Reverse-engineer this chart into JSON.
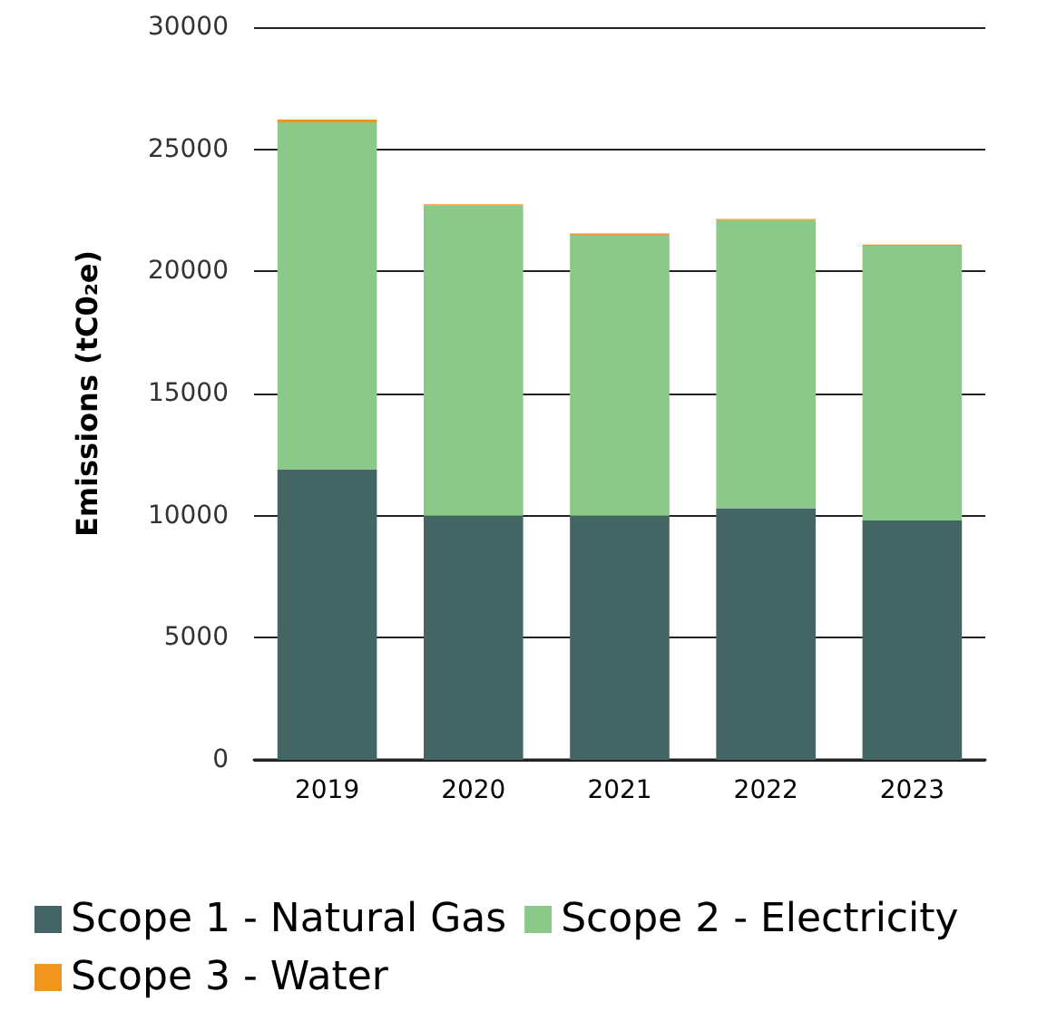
{
  "chart_data": {
    "type": "bar",
    "stacked": true,
    "ylabel": "Emissions (tC0₂e)",
    "categories": [
      "2019",
      "2020",
      "2021",
      "2022",
      "2023"
    ],
    "series": [
      {
        "name": "Scope 1 - Natural Gas",
        "color": "#436664",
        "values": [
          11900,
          10000,
          10000,
          10300,
          9800
        ]
      },
      {
        "name": "Scope 2 - Electricity",
        "color": "#8ac98a",
        "values": [
          14200,
          12700,
          11500,
          11800,
          11250
        ]
      },
      {
        "name": "Scope 3 - Water",
        "color": "#f0961e",
        "values": [
          120,
          50,
          50,
          50,
          50
        ]
      }
    ],
    "ylim": [
      0,
      30000
    ],
    "yticks": [
      0,
      5000,
      10000,
      15000,
      20000,
      25000,
      30000
    ],
    "grid": "y",
    "legend": "bottom"
  }
}
